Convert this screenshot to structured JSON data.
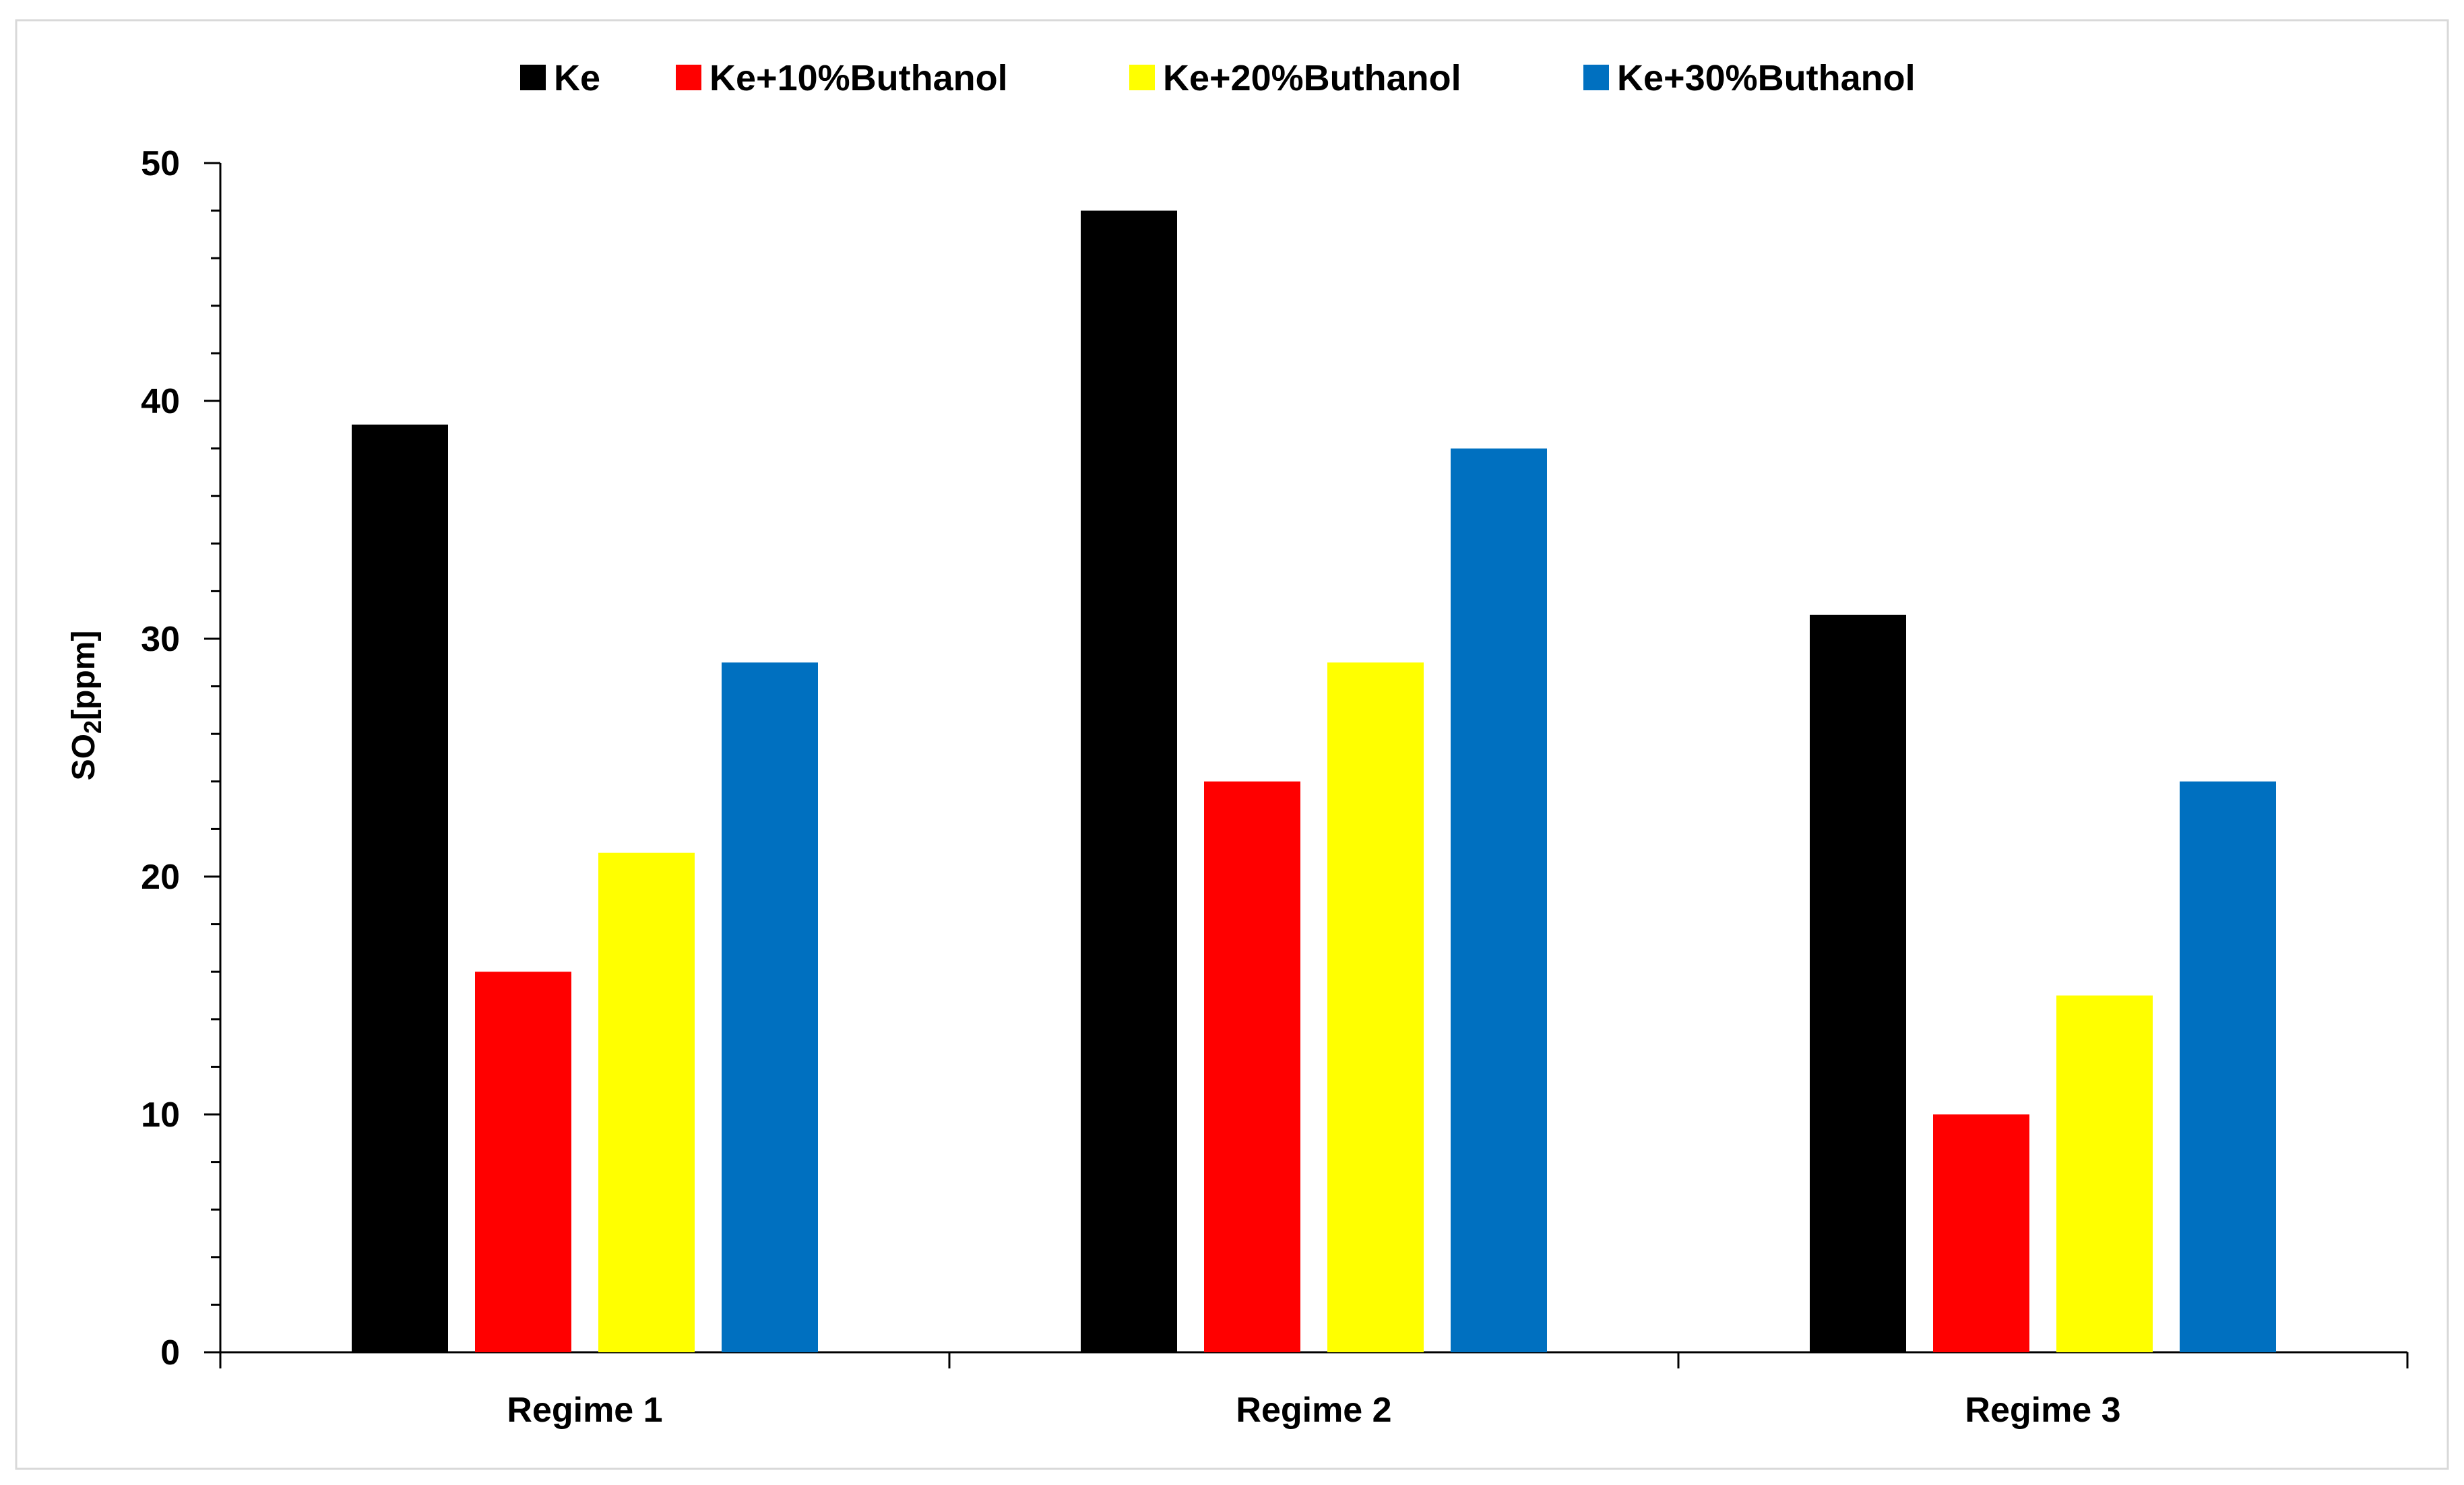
{
  "chart_data": {
    "type": "bar",
    "title": "",
    "xlabel": "",
    "ylabel_main": "SO",
    "ylabel_sub": "2",
    "ylabel_tail": "[ppm]",
    "ylim": [
      0,
      50
    ],
    "major_ticks": [
      0,
      10,
      20,
      30,
      40,
      50
    ],
    "minor_tick_step": 2,
    "grid": false,
    "legend_position": "top-center",
    "categories": [
      "Regime 1",
      "Regime 2",
      "Regime 3"
    ],
    "series": [
      {
        "name": "Ke",
        "color": "#000000",
        "values": [
          39,
          48,
          31
        ]
      },
      {
        "name": "Ke+10%Buthanol",
        "color": "#FF0000",
        "values": [
          16,
          24,
          10
        ]
      },
      {
        "name": "Ke+20%Buthanol",
        "color": "#FFFF00",
        "values": [
          21,
          29,
          15
        ]
      },
      {
        "name": "Ke+30%Buthanol",
        "color": "#0070C0",
        "values": [
          29,
          38,
          24
        ]
      }
    ]
  }
}
